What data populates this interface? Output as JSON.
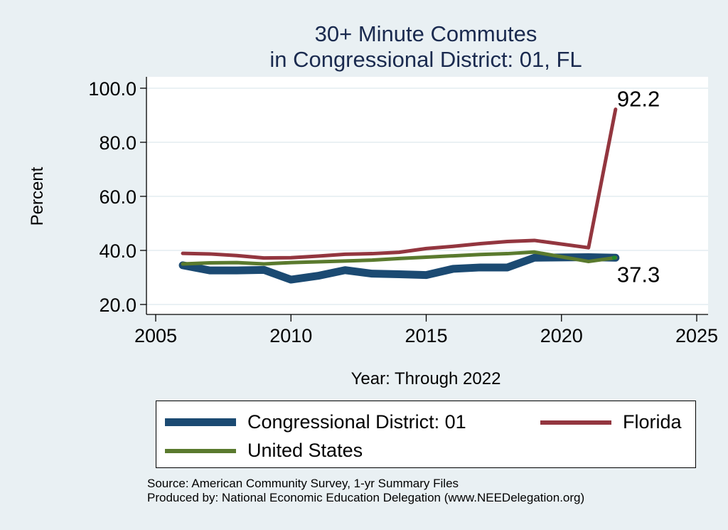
{
  "colors": {
    "background": "#e9f0f3",
    "plot_background": "#ffffff",
    "gridline": "#eaf1f4",
    "title": "#1a2a4f",
    "congressional_district": "#1b4a72",
    "florida": "#93363f",
    "united_states": "#5a7a2e"
  },
  "chart_data": {
    "type": "line",
    "title": "30+ Minute Commutes",
    "subtitle": "in Congressional District:  01, FL",
    "xlabel": "Year: Through 2022",
    "ylabel": "Percent",
    "xlim": [
      2005,
      2025
    ],
    "ylim": [
      20,
      100
    ],
    "xticks": [
      2005,
      2010,
      2015,
      2020,
      2025
    ],
    "xtick_labels": [
      "2005",
      "2010",
      "2015",
      "2020",
      "2025"
    ],
    "yticks": [
      20,
      40,
      60,
      80,
      100
    ],
    "ytick_labels": [
      "20.0",
      "40.0",
      "60.0",
      "80.0",
      "100.0"
    ],
    "grid": true,
    "legend_placement": "bottom",
    "x": [
      2006,
      2007,
      2008,
      2009,
      2010,
      2011,
      2012,
      2013,
      2014,
      2015,
      2016,
      2017,
      2018,
      2019,
      2021,
      2022
    ],
    "series": [
      {
        "name": "Congressional District:  01",
        "key": "congressional_district",
        "values": [
          34.5,
          32.6,
          32.6,
          32.8,
          29.2,
          30.6,
          32.7,
          31.4,
          31.2,
          30.9,
          33.2,
          33.7,
          33.7,
          37.3,
          37.5,
          37.3
        ]
      },
      {
        "name": "Florida",
        "key": "florida",
        "values": [
          38.9,
          38.7,
          38.1,
          37.2,
          37.3,
          37.9,
          38.6,
          38.8,
          39.3,
          40.7,
          41.5,
          42.5,
          43.3,
          43.7,
          41.0,
          92.2
        ]
      },
      {
        "name": "United States",
        "key": "united_states",
        "values": [
          35.0,
          35.4,
          35.5,
          35.0,
          35.5,
          35.8,
          36.1,
          36.4,
          37.0,
          37.5,
          38.0,
          38.5,
          38.8,
          39.4,
          35.9,
          37.3
        ]
      }
    ],
    "annotations": [
      {
        "text": "92.2",
        "series": "florida",
        "x": 2022,
        "y": 92.2,
        "position": "above-right"
      },
      {
        "text": "37.3",
        "series": "congressional_district",
        "x": 2022,
        "y": 37.3,
        "position": "below-right"
      }
    ]
  },
  "legend": {
    "items": [
      {
        "label": "Congressional District:  01",
        "key": "congressional_district"
      },
      {
        "label": "Florida",
        "key": "florida"
      },
      {
        "label": "United States",
        "key": "united_states"
      }
    ]
  },
  "footer": {
    "source": "Source: American Community Survey, 1-yr Summary Files",
    "producer": "Produced by: National Economic Education Delegation (www.NEEDelegation.org)"
  }
}
